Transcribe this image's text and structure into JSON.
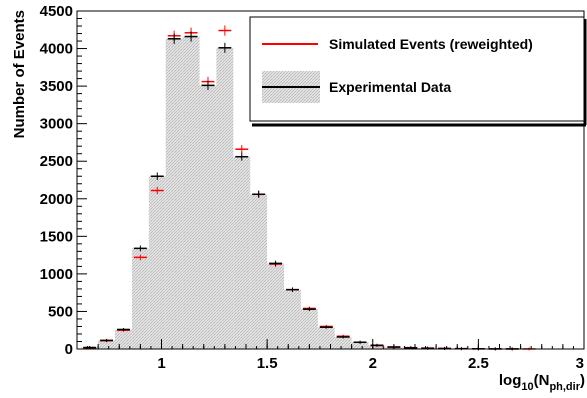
{
  "chart_data": {
    "type": "bar",
    "xlabel": "log",
    "xlabel_sub": "10",
    "xlabel_paren_open": "(N",
    "xlabel_sub2": "ph,dir",
    "xlabel_paren_close": ")",
    "ylabel": "Number of Events",
    "xlim": [
      0.6,
      3.0
    ],
    "ylim": [
      0,
      4500
    ],
    "x_ticks": [
      1,
      1.5,
      2,
      2.5,
      3
    ],
    "x_tick_labels": [
      "1",
      "1.5",
      "2",
      "2.5",
      "3"
    ],
    "y_ticks": [
      0,
      500,
      1000,
      1500,
      2000,
      2500,
      3000,
      3500,
      4000,
      4500
    ],
    "y_tick_labels": [
      "0",
      "500",
      "1000",
      "1500",
      "2000",
      "2500",
      "3000",
      "3500",
      "4000",
      "4500"
    ],
    "bin_width": 0.08,
    "bin_centers": [
      0.66,
      0.74,
      0.82,
      0.9,
      0.98,
      1.06,
      1.14,
      1.22,
      1.3,
      1.38,
      1.46,
      1.54,
      1.62,
      1.7,
      1.78,
      1.86,
      1.94,
      2.02,
      2.1,
      2.18,
      2.26,
      2.34,
      2.42,
      2.5,
      2.58,
      2.66,
      2.74,
      2.82,
      2.9,
      2.98
    ],
    "series": [
      {
        "name": "Simulated Events (reweighted)",
        "style": "red-cross",
        "values": [
          15,
          110,
          250,
          1220,
          2110,
          4170,
          4210,
          3560,
          4240,
          2660,
          2060,
          1130,
          790,
          540,
          300,
          170,
          90,
          45,
          28,
          18,
          12,
          8,
          5,
          3,
          2,
          1,
          1,
          0,
          0,
          0
        ]
      },
      {
        "name": "Experimental Data",
        "style": "shaded-hist-black-cross",
        "values": [
          20,
          115,
          260,
          1340,
          2300,
          4130,
          4160,
          3510,
          4010,
          2560,
          2060,
          1140,
          790,
          530,
          290,
          160,
          90,
          50,
          25,
          15,
          10,
          6,
          4,
          2,
          1,
          1,
          0,
          0,
          0,
          0
        ]
      }
    ],
    "legend_position": "top-right",
    "grid": false
  },
  "colors": {
    "simulated": "#ff0000",
    "data": "#000000",
    "hist_fill": "#d9d9d9"
  }
}
